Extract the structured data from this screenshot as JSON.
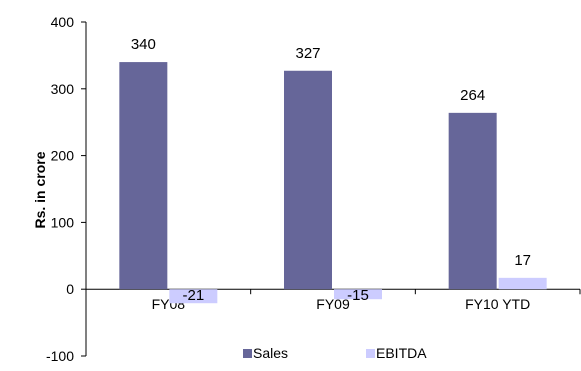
{
  "chart_data": {
    "type": "bar",
    "categories": [
      "FY08",
      "FY09",
      "FY10 YTD"
    ],
    "series": [
      {
        "name": "Sales",
        "values": [
          340,
          327,
          264
        ],
        "labels": [
          "340",
          "327",
          "264"
        ],
        "color": "#666699"
      },
      {
        "name": "EBITDA",
        "values": [
          -21,
          -15,
          17
        ],
        "labels": [
          "-21",
          "-15",
          "17"
        ],
        "color": "#ccccff"
      }
    ],
    "ylabel": "Rs. in crore",
    "ylim": [
      -100,
      400
    ],
    "yticks": [
      -100,
      0,
      100,
      200,
      300,
      400
    ],
    "ytick_labels": [
      "-100",
      "0",
      "100",
      "200",
      "300",
      "400"
    ],
    "grid": false,
    "legend_position": "bottom",
    "label_color": "#000000",
    "axis_color": "#000000"
  }
}
